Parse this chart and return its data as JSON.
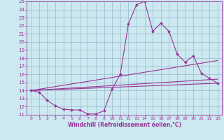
{
  "xlabel": "Windchill (Refroidissement éolien,°C)",
  "background_color": "#cce8f0",
  "grid_color": "#99bbcc",
  "line_color": "#993399",
  "xlim": [
    -0.5,
    23.5
  ],
  "ylim": [
    11,
    25
  ],
  "xticks": [
    0,
    1,
    2,
    3,
    4,
    5,
    6,
    7,
    8,
    9,
    10,
    11,
    12,
    13,
    14,
    15,
    16,
    17,
    18,
    19,
    20,
    21,
    22,
    23
  ],
  "yticks": [
    11,
    12,
    13,
    14,
    15,
    16,
    17,
    18,
    19,
    20,
    21,
    22,
    23,
    24,
    25
  ],
  "curve1_x": [
    0,
    1,
    2,
    3,
    4,
    5,
    6,
    7,
    8,
    9,
    10,
    11,
    12,
    13,
    14,
    15,
    16,
    17,
    18,
    19,
    20,
    21,
    22,
    23
  ],
  "curve1_y": [
    14.0,
    13.8,
    12.8,
    12.1,
    11.7,
    11.6,
    11.6,
    11.1,
    11.1,
    11.5,
    14.2,
    16.0,
    22.2,
    24.6,
    25.0,
    21.3,
    22.3,
    21.3,
    18.5,
    17.5,
    18.3,
    16.1,
    15.5,
    14.9
  ],
  "line2_x": [
    0,
    23
  ],
  "line2_y": [
    14.0,
    14.9
  ],
  "line3_x": [
    0,
    23
  ],
  "line3_y": [
    14.0,
    17.7
  ],
  "line4_x": [
    0,
    23
  ],
  "line4_y": [
    14.0,
    15.4
  ]
}
